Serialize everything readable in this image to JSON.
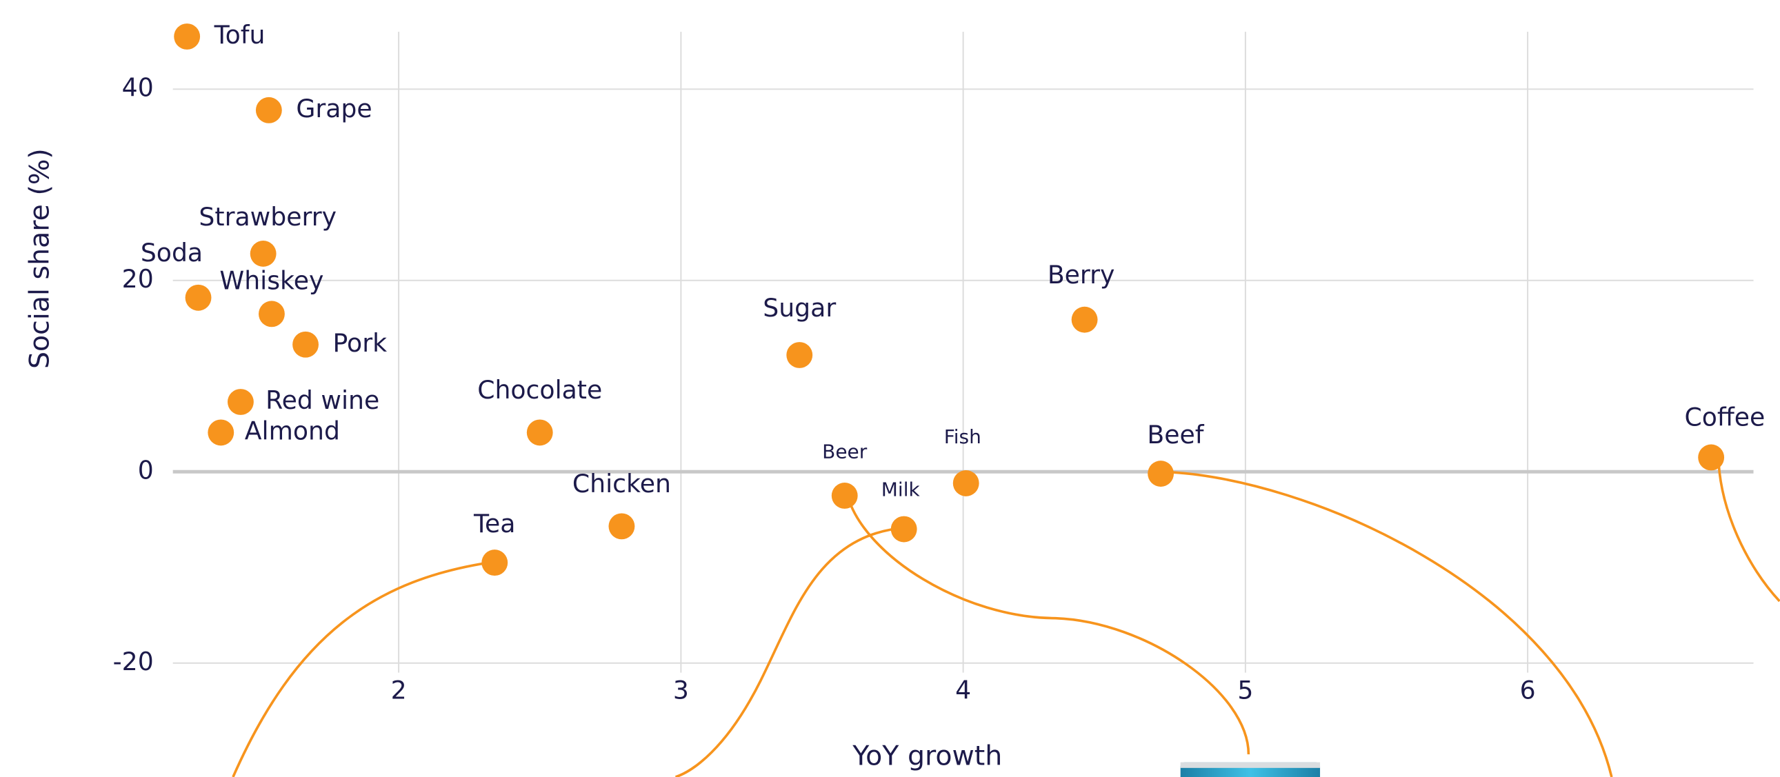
{
  "chart_data": {
    "type": "scatter",
    "x_label": "YoY growth",
    "y_label": "Social share (%)",
    "color": "#f7941d",
    "xlim": [
      1.2,
      6.8
    ],
    "ylim": [
      -21,
      46
    ],
    "xticks": [
      2,
      3,
      4,
      5,
      6
    ],
    "yticks": [
      -20,
      0,
      20,
      40
    ],
    "grid": true,
    "labels": [
      "Tofu",
      "Grape",
      "Strawberry",
      "Soda",
      "Whiskey",
      "Pork",
      "Red wine",
      "Almond",
      "Chocolate",
      "Tea",
      "Chicken",
      "Sugar",
      "Beer",
      "Milk",
      "Fish",
      "Berry",
      "Beef",
      "Coffee"
    ],
    "x": [
      1.25,
      1.54,
      1.52,
      1.29,
      1.55,
      1.67,
      1.44,
      1.37,
      2.5,
      2.34,
      2.79,
      3.42,
      3.58,
      3.79,
      4.01,
      4.43,
      4.7,
      6.65
    ],
    "values": [
      45.5,
      37.8,
      22.8,
      18.2,
      16.5,
      13.3,
      7.3,
      4.1,
      4.1,
      -9.5,
      -5.7,
      12.2,
      -2.5,
      -6.0,
      -1.2,
      15.9,
      -0.2,
      1.5
    ]
  }
}
